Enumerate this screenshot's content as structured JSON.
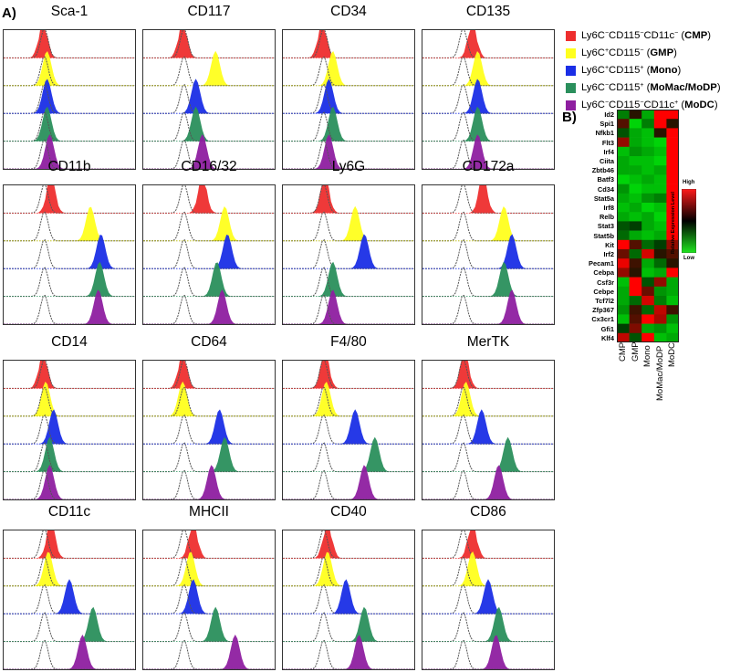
{
  "panel_a_label": "A)",
  "panel_b_label": "B)",
  "markers": [
    "Sca-1",
    "CD117",
    "CD34",
    "CD135",
    "CD11b",
    "CD16/32",
    "Ly6G",
    "CD172a",
    "CD14",
    "CD64",
    "F4/80",
    "MerTK",
    "CD11c",
    "MHCII",
    "CD40",
    "CD86"
  ],
  "populations": [
    {
      "key": "CMP",
      "color": "#ee2e2e",
      "pre": "Ly6C",
      "s1": "−",
      "mid": "CD115",
      "s2": "−",
      "extra": "CD11c",
      "s3": "−",
      "abbr": "CMP"
    },
    {
      "key": "GMP",
      "color": "#ffff1e",
      "pre": "Ly6C",
      "s1": "+",
      "mid": "CD115",
      "s2": "−",
      "extra": "",
      "s3": "",
      "abbr": "GMP"
    },
    {
      "key": "Mono",
      "color": "#1a2ee6",
      "pre": "Ly6C",
      "s1": "+",
      "mid": "CD115",
      "s2": "+",
      "extra": "",
      "s3": "",
      "abbr": "Mono"
    },
    {
      "key": "MoMac",
      "color": "#2a8f5c",
      "pre": "Ly6C",
      "s1": "−",
      "mid": "CD115",
      "s2": "+",
      "extra": "",
      "s3": "",
      "abbr": "MoMac/MoDP"
    },
    {
      "key": "MoDC",
      "color": "#8e1fa0",
      "pre": "Ly6C",
      "s1": "−",
      "mid": "CD115",
      "s2": "−",
      "extra": "CD11c",
      "s3": "+",
      "abbr": "MoDC"
    }
  ],
  "histogram_peaks": {
    "Sca-1": [
      0.3,
      0.33,
      0.33,
      0.33,
      0.35
    ],
    "CD117": [
      0.3,
      0.55,
      0.4,
      0.4,
      0.45
    ],
    "CD34": [
      0.3,
      0.38,
      0.35,
      0.38,
      0.35
    ],
    "CD135": [
      0.38,
      0.42,
      0.42,
      0.42,
      0.42
    ],
    "CD11b": [
      0.36,
      0.66,
      0.74,
      0.73,
      0.72
    ],
    "CD16/32": [
      0.45,
      0.62,
      0.64,
      0.56,
      0.6
    ],
    "Ly6G": [
      0.32,
      0.55,
      0.62,
      0.38,
      0.38
    ],
    "CD172a": [
      0.46,
      0.62,
      0.68,
      0.62,
      0.68
    ],
    "CD14": [
      0.3,
      0.32,
      0.38,
      0.35,
      0.35
    ],
    "CD64": [
      0.3,
      0.3,
      0.58,
      0.62,
      0.52
    ],
    "F4/80": [
      0.32,
      0.33,
      0.55,
      0.7,
      0.62
    ],
    "MerTK": [
      0.32,
      0.33,
      0.45,
      0.65,
      0.58
    ],
    "CD11c": [
      0.36,
      0.34,
      0.5,
      0.68,
      0.6
    ],
    "MHCII": [
      0.38,
      0.36,
      0.38,
      0.55,
      0.7
    ],
    "CD40": [
      0.34,
      0.34,
      0.48,
      0.62,
      0.58
    ],
    "CD86": [
      0.38,
      0.38,
      0.5,
      0.58,
      0.56
    ]
  },
  "heatmap": {
    "genes": [
      "Id2",
      "Spi1",
      "Nfkb1",
      "Flt3",
      "Irf4",
      "Ciita",
      "Zbtb46",
      "Batf3",
      "Cd34",
      "Stat5a",
      "Irf8",
      "Relb",
      "Stat3",
      "Stat5b",
      "Kit",
      "Irf2",
      "Pecam1",
      "Cebpa",
      "Csf3r",
      "Cebpe",
      "Tcf7l2",
      "Zfp367",
      "Cx3cr1",
      "Gfi1",
      "Klf4"
    ],
    "columns": [
      "CMP",
      "GMP",
      "Mono",
      "MoMac/MoDP",
      "MoDC"
    ],
    "values": [
      [
        -0.4,
        0.0,
        -0.6,
        1.0,
        1.0
      ],
      [
        0.2,
        -0.8,
        -0.4,
        1.0,
        0.0
      ],
      [
        -0.2,
        -0.6,
        -0.7,
        0.0,
        1.0
      ],
      [
        0.5,
        -0.6,
        -0.7,
        -0.8,
        1.0
      ],
      [
        -0.7,
        -0.5,
        -0.6,
        -0.7,
        1.0
      ],
      [
        -0.6,
        -0.7,
        -0.7,
        -0.8,
        1.0
      ],
      [
        -0.6,
        -0.6,
        -0.7,
        -0.6,
        1.0
      ],
      [
        -0.8,
        -0.7,
        -0.6,
        -0.7,
        1.0
      ],
      [
        -0.5,
        -0.8,
        -0.7,
        -0.7,
        1.0
      ],
      [
        -0.6,
        -0.7,
        -0.5,
        -0.4,
        1.0
      ],
      [
        -0.7,
        -0.6,
        -0.8,
        -0.7,
        1.0
      ],
      [
        -0.6,
        -0.7,
        -0.6,
        -0.8,
        1.0
      ],
      [
        -0.2,
        -0.1,
        -0.6,
        -0.7,
        1.0
      ],
      [
        -0.3,
        -0.6,
        -0.7,
        -0.6,
        1.0
      ],
      [
        1.0,
        0.2,
        -0.3,
        -0.1,
        0.5
      ],
      [
        0.3,
        -0.3,
        0.8,
        0.0,
        0.2
      ],
      [
        0.9,
        0.1,
        -0.6,
        -0.3,
        0.0
      ],
      [
        0.5,
        0.0,
        -0.7,
        -0.6,
        1.0
      ],
      [
        -0.7,
        1.0,
        -0.2,
        0.5,
        -0.6
      ],
      [
        -0.6,
        1.0,
        0.3,
        -0.5,
        -0.6
      ],
      [
        -0.6,
        -0.3,
        0.8,
        -0.4,
        -0.7
      ],
      [
        -0.5,
        0.1,
        -0.3,
        0.7,
        0.1
      ],
      [
        -0.7,
        0.2,
        1.0,
        0.6,
        -0.5
      ],
      [
        -0.1,
        0.4,
        -0.6,
        -0.5,
        -0.7
      ],
      [
        0.7,
        -0.2,
        1.0,
        -0.7,
        -0.6
      ]
    ],
    "colorbar_high": "High",
    "colorbar_low": "Low",
    "colorbar_title": "Relative Expression Level"
  }
}
